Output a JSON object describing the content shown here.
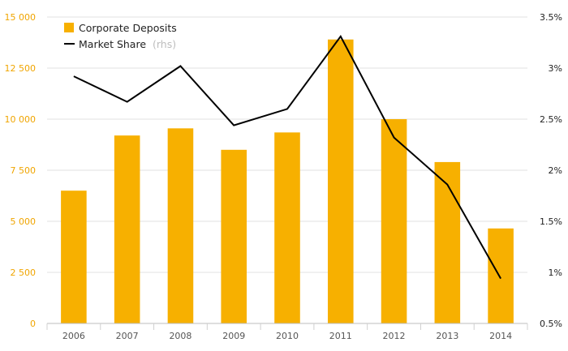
{
  "chart_data": {
    "type": "bar",
    "categories": [
      "2006",
      "2007",
      "2008",
      "2009",
      "2010",
      "2011",
      "2012",
      "2013",
      "2014"
    ],
    "series": [
      {
        "name": "Corporate Deposits",
        "type": "bar",
        "axis": "left",
        "color": "#f7b000",
        "values": [
          6500,
          9200,
          9550,
          8500,
          9350,
          13900,
          10000,
          7900,
          4650
        ]
      },
      {
        "name": "Market Share",
        "name_suffix": "(rhs)",
        "type": "line",
        "axis": "right",
        "color": "#000000",
        "values": [
          2.92,
          2.67,
          3.02,
          2.44,
          2.6,
          3.31,
          2.32,
          1.86,
          0.94
        ]
      }
    ],
    "y_left": {
      "ylim": [
        0,
        15000
      ],
      "ticks": [
        0,
        2500,
        5000,
        7500,
        10000,
        12500,
        15000
      ],
      "tick_labels": [
        "0",
        "2 500",
        "5 000",
        "7 500",
        "10 000",
        "12 500",
        "15 000"
      ],
      "tick_color": "#f0a500"
    },
    "y_right": {
      "ylim": [
        0.5,
        3.5
      ],
      "ticks": [
        0.5,
        1,
        1.5,
        2,
        2.5,
        3,
        3.5
      ],
      "tick_labels": [
        "0.5%",
        "1%",
        "1.5%",
        "2%",
        "2.5%",
        "3%",
        "3.5%"
      ]
    },
    "grid": true,
    "legend": "top-left",
    "title": "",
    "xlabel": "",
    "ylabel": ""
  }
}
